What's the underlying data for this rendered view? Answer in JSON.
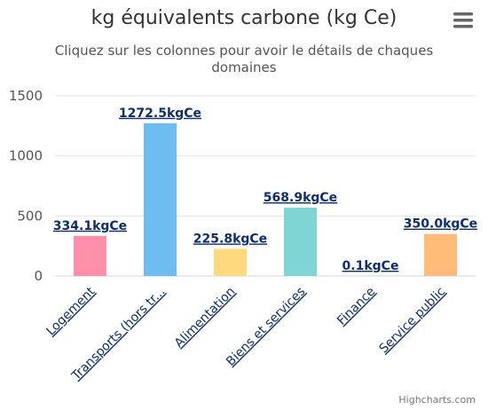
{
  "chart_data": {
    "type": "bar",
    "title": "kg équivalents carbone (kg Ce)",
    "subtitle_lines": [
      "Cliquez sur les colonnes pour avoir le détails de chaques",
      "domaines"
    ],
    "categories": [
      "Logement",
      "Transports (hors tr...",
      "Alimentation",
      "Biens et services",
      "Finance",
      "Service public"
    ],
    "values": [
      334.1,
      1272.5,
      225.8,
      568.9,
      0.1,
      350.0
    ],
    "data_labels": [
      "334.1kgCe",
      "1272.5kgCe",
      "225.8kgCe",
      "568.9kgCe",
      "0.1kgCe",
      "350.0kgCe"
    ],
    "colors": [
      "#ff8fab",
      "#6ebcf0",
      "#ffd97d",
      "#7fd4d4",
      "#b39ddb",
      "#ffbb77"
    ],
    "ylim": [
      0,
      1500
    ],
    "yticks": [
      0,
      500,
      1000,
      1500
    ],
    "grid": true,
    "legend": "none"
  },
  "credits": "Highcharts.com",
  "menu_icon": "hamburger-menu-icon"
}
